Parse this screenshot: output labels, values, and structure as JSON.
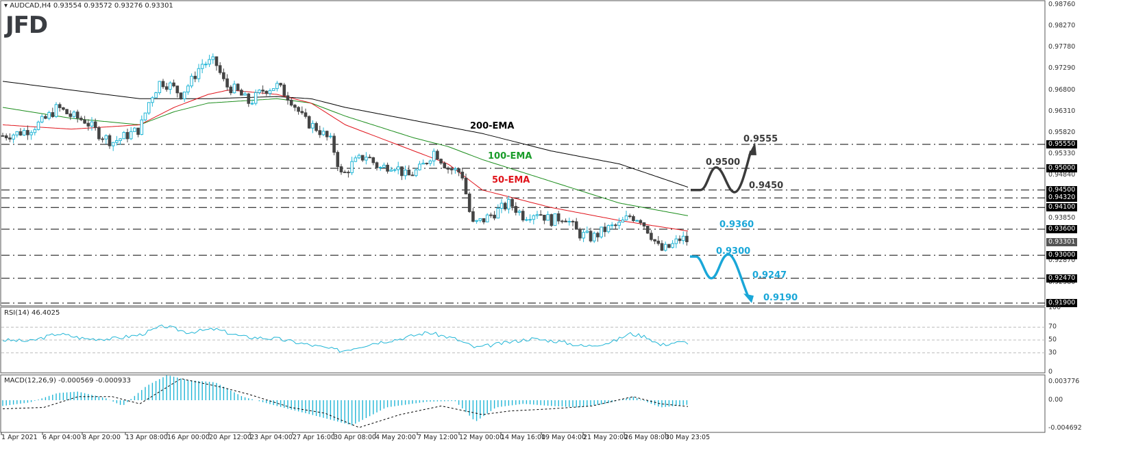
{
  "header": {
    "symbol_line": "AUDCAD,H4  0.93554 0.93572 0.93276 0.93301",
    "logo": "JFD"
  },
  "colors": {
    "bull_outline": "#1fb5d6",
    "bear_fill": "#444444",
    "ema50": "#e0141b",
    "ema100": "#1a8c1a",
    "ema200": "#000000",
    "rsi_line": "#1fb5d6",
    "macd_hist": "#1fb5d6",
    "bullish_scenario": "#3b3b3b",
    "bearish_scenario": "#1aa7d8"
  },
  "price_axis": {
    "ticks": [
      "0.98760",
      "0.98270",
      "0.97780",
      "0.97290",
      "0.96800",
      "0.96310",
      "0.95820",
      "0.95330",
      "0.94840",
      "0.93850",
      "0.92870",
      "0.92380"
    ],
    "levels": [
      "0.95550",
      "0.95000",
      "0.94500",
      "0.94320",
      "0.94100",
      "0.93600",
      "0.93000",
      "0.92470",
      "0.91900"
    ],
    "current": "0.93301"
  },
  "rsi": {
    "title": "RSI(14) 46.4025",
    "ticks": [
      "100",
      "70",
      "50",
      "30",
      "0"
    ]
  },
  "macd": {
    "title": "MACD(12,26,9) -0.000569 -0.000933",
    "ticks": [
      "0.003776",
      "0.00",
      "-0.004692"
    ]
  },
  "x_axis": {
    "labels": [
      "1 Apr 2021",
      "6 Apr 04:00",
      "8 Apr 20:00",
      "13 Apr 08:00",
      "16 Apr 00:00",
      "20 Apr 12:00",
      "23 Apr 04:00",
      "27 Apr 16:00",
      "30 Apr 08:00",
      "4 May 20:00",
      "7 May 12:00",
      "12 May 00:00",
      "14 May 16:00",
      "19 May 04:00",
      "21 May 20:00",
      "26 May 08:00",
      "30 May 23:05"
    ]
  },
  "annotations": {
    "ema200": "200-EMA",
    "ema100": "100-EMA",
    "ema50": "50-EMA",
    "bull_targets": [
      "0.9555",
      "0.9500",
      "0.9450"
    ],
    "bear_targets": [
      "0.9360",
      "0.9300",
      "0.9247",
      "0.9190"
    ]
  },
  "chart_data": {
    "type": "candlestick",
    "title": "AUDCAD, H4",
    "ohlc_last": {
      "open": 0.93554,
      "high": 0.93572,
      "low": 0.93276,
      "close": 0.93301
    },
    "x_range": [
      "1 Apr 2021",
      "30 May 23:05"
    ],
    "ylim": [
      0.919,
      0.9876
    ],
    "horizontal_levels": [
      0.9555,
      0.95,
      0.945,
      0.9432,
      0.941,
      0.936,
      0.93,
      0.9247,
      0.919
    ],
    "close_path": [
      [
        0,
        0.9575
      ],
      [
        20,
        0.958
      ],
      [
        40,
        0.959
      ],
      [
        60,
        0.961
      ],
      [
        80,
        0.964
      ],
      [
        100,
        0.962
      ],
      [
        120,
        0.961
      ],
      [
        140,
        0.958
      ],
      [
        160,
        0.956
      ],
      [
        180,
        0.9575
      ],
      [
        200,
        0.959
      ],
      [
        215,
        0.966
      ],
      [
        230,
        0.97
      ],
      [
        245,
        0.969
      ],
      [
        260,
        0.967
      ],
      [
        275,
        0.97
      ],
      [
        290,
        0.974
      ],
      [
        310,
        0.9745
      ],
      [
        325,
        0.969
      ],
      [
        340,
        0.968
      ],
      [
        360,
        0.965
      ],
      [
        380,
        0.968
      ],
      [
        400,
        0.969
      ],
      [
        420,
        0.966
      ],
      [
        440,
        0.961
      ],
      [
        460,
        0.959
      ],
      [
        480,
        0.956
      ],
      [
        495,
        0.948
      ],
      [
        510,
        0.951
      ],
      [
        530,
        0.953
      ],
      [
        550,
        0.95
      ],
      [
        570,
        0.951
      ],
      [
        590,
        0.948
      ],
      [
        610,
        0.95
      ],
      [
        630,
        0.954
      ],
      [
        650,
        0.95
      ],
      [
        670,
        0.949
      ],
      [
        685,
        0.937
      ],
      [
        700,
        0.938
      ],
      [
        720,
        0.94
      ],
      [
        740,
        0.942
      ],
      [
        760,
        0.939
      ],
      [
        780,
        0.94
      ],
      [
        800,
        0.938
      ],
      [
        820,
        0.939
      ],
      [
        840,
        0.935
      ],
      [
        860,
        0.934
      ],
      [
        880,
        0.936
      ],
      [
        900,
        0.937
      ],
      [
        915,
        0.939
      ],
      [
        930,
        0.9385
      ],
      [
        945,
        0.935
      ],
      [
        960,
        0.931
      ],
      [
        975,
        0.932
      ],
      [
        990,
        0.934
      ],
      [
        1003,
        0.933
      ]
    ],
    "ema": {
      "ema200": [
        [
          0,
          0.97
        ],
        [
          100,
          0.968
        ],
        [
          200,
          0.966
        ],
        [
          300,
          0.966
        ],
        [
          400,
          0.9665
        ],
        [
          450,
          0.966
        ],
        [
          500,
          0.964
        ],
        [
          600,
          0.961
        ],
        [
          700,
          0.958
        ],
        [
          800,
          0.954
        ],
        [
          900,
          0.951
        ],
        [
          1003,
          0.9455
        ]
      ],
      "ema100": [
        [
          0,
          0.964
        ],
        [
          100,
          0.9615
        ],
        [
          200,
          0.96
        ],
        [
          250,
          0.963
        ],
        [
          300,
          0.965
        ],
        [
          400,
          0.966
        ],
        [
          450,
          0.965
        ],
        [
          500,
          0.962
        ],
        [
          600,
          0.957
        ],
        [
          650,
          0.955
        ],
        [
          700,
          0.952
        ],
        [
          800,
          0.947
        ],
        [
          900,
          0.942
        ],
        [
          1003,
          0.939
        ]
      ],
      "ema50": [
        [
          0,
          0.96
        ],
        [
          100,
          0.959
        ],
        [
          200,
          0.96
        ],
        [
          250,
          0.964
        ],
        [
          300,
          0.967
        ],
        [
          330,
          0.968
        ],
        [
          400,
          0.967
        ],
        [
          450,
          0.965
        ],
        [
          500,
          0.96
        ],
        [
          600,
          0.954
        ],
        [
          650,
          0.951
        ],
        [
          700,
          0.945
        ],
        [
          800,
          0.941
        ],
        [
          900,
          0.938
        ],
        [
          1003,
          0.9355
        ]
      ]
    },
    "rsi": {
      "name": "RSI(14)",
      "last": 46.4025,
      "levels": [
        70,
        50,
        30
      ],
      "ylim": [
        0,
        100
      ],
      "values": [
        [
          0,
          50
        ],
        [
          40,
          48
        ],
        [
          80,
          60
        ],
        [
          120,
          52
        ],
        [
          160,
          52
        ],
        [
          200,
          58
        ],
        [
          235,
          72
        ],
        [
          270,
          62
        ],
        [
          310,
          67
        ],
        [
          350,
          55
        ],
        [
          400,
          52
        ],
        [
          450,
          42
        ],
        [
          495,
          33
        ],
        [
          540,
          45
        ],
        [
          580,
          52
        ],
        [
          620,
          62
        ],
        [
          660,
          52
        ],
        [
          690,
          38
        ],
        [
          730,
          45
        ],
        [
          770,
          52
        ],
        [
          810,
          48
        ],
        [
          850,
          40
        ],
        [
          890,
          47
        ],
        [
          915,
          60
        ],
        [
          940,
          55
        ],
        [
          960,
          42
        ],
        [
          980,
          46
        ],
        [
          1003,
          46.4
        ]
      ]
    },
    "macd": {
      "name": "MACD(12,26,9)",
      "main": -0.000569,
      "signal": -0.000933,
      "ylim": [
        -0.004692,
        0.003776
      ],
      "hist": [
        [
          0,
          -0.0008
        ],
        [
          40,
          -0.0003
        ],
        [
          80,
          0.001
        ],
        [
          110,
          0.0012
        ],
        [
          150,
          0.0003
        ],
        [
          175,
          -0.0008
        ],
        [
          210,
          0.002
        ],
        [
          240,
          0.0035
        ],
        [
          270,
          0.0028
        ],
        [
          310,
          0.0025
        ],
        [
          350,
          0.0005
        ],
        [
          400,
          -0.0008
        ],
        [
          450,
          -0.002
        ],
        [
          510,
          -0.0035
        ],
        [
          560,
          -0.001
        ],
        [
          620,
          -0.0002
        ],
        [
          660,
          -0.0001
        ],
        [
          690,
          -0.003
        ],
        [
          720,
          -0.001
        ],
        [
          760,
          -0.0005
        ],
        [
          800,
          -0.0008
        ],
        [
          840,
          -0.001
        ],
        [
          880,
          -0.0005
        ],
        [
          920,
          0.0005
        ],
        [
          960,
          -0.001
        ],
        [
          1003,
          -0.0006
        ]
      ],
      "signal_path": [
        [
          0,
          -0.0012
        ],
        [
          60,
          -0.001
        ],
        [
          110,
          0.0005
        ],
        [
          160,
          0.0005
        ],
        [
          200,
          -0.0005
        ],
        [
          260,
          0.003
        ],
        [
          320,
          0.0018
        ],
        [
          360,
          0.0008
        ],
        [
          420,
          -0.001
        ],
        [
          470,
          -0.0018
        ],
        [
          520,
          -0.0038
        ],
        [
          580,
          -0.002
        ],
        [
          640,
          -0.0008
        ],
        [
          700,
          -0.002
        ],
        [
          740,
          -0.0015
        ],
        [
          800,
          -0.0012
        ],
        [
          860,
          -0.0008
        ],
        [
          920,
          0.0005
        ],
        [
          960,
          -0.0005
        ],
        [
          1003,
          -0.0009
        ]
      ]
    },
    "scenarios": {
      "bullish": {
        "path": [
          0.945,
          0.95,
          0.945,
          0.9555
        ],
        "labels": [
          "0.9500",
          "0.9450",
          "0.9555"
        ]
      },
      "bearish": {
        "path": [
          0.93,
          0.9247,
          0.93,
          0.919
        ],
        "labels": [
          "0.9360",
          "0.9300",
          "0.9247",
          "0.9190"
        ]
      }
    }
  }
}
